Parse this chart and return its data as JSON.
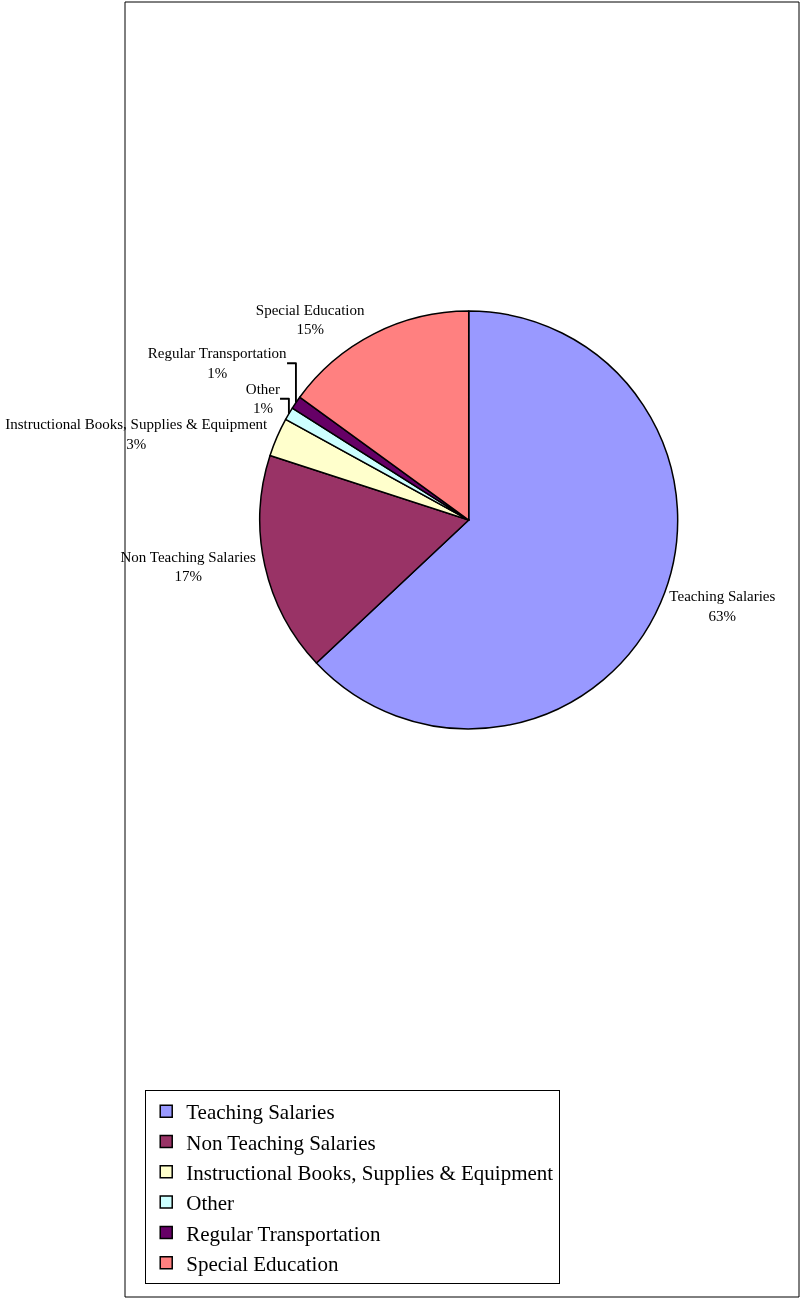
{
  "chart_data": {
    "type": "pie",
    "categories": [
      "Teaching Salaries",
      "Non Teaching Salaries",
      "Instructional Books, Supplies & Equipment",
      "Other",
      "Regular Transportation",
      "Special Education"
    ],
    "values": [
      63,
      17,
      3,
      1,
      1,
      15
    ],
    "value_labels": [
      "63%",
      "17%",
      "3%",
      "1%",
      "1%",
      "15%"
    ],
    "colors": [
      "#9999ff",
      "#993366",
      "#ffffcc",
      "#ccffff",
      "#660066",
      "#ff8080"
    ],
    "legend": "bottom left"
  }
}
